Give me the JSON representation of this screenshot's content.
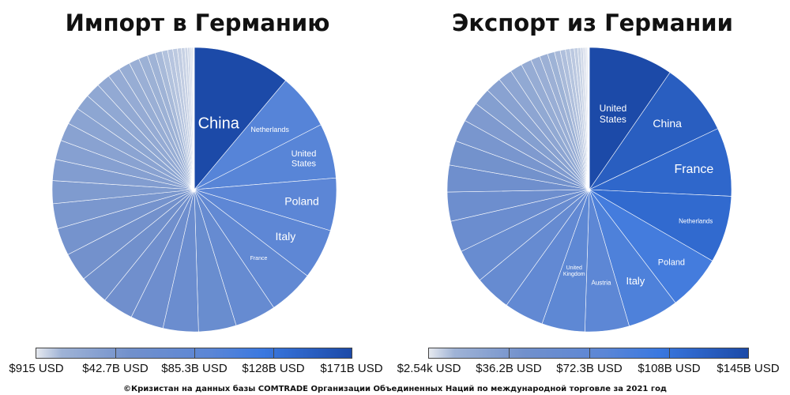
{
  "charts": [
    {
      "title": "Импорт в Германию",
      "labels": [
        "China",
        "Netherlands",
        "United States",
        "Poland",
        "Italy",
        "France"
      ],
      "legend_ticks": [
        "$915 USD",
        "$42.7B USD",
        "$85.3B USD",
        "$128B USD",
        "$171B USD"
      ]
    },
    {
      "title": "Экспорт из Германии",
      "labels": [
        "United States",
        "China",
        "France",
        "Netherlands",
        "Poland",
        "Italy",
        "Austria",
        "United Kingdom"
      ],
      "legend_ticks": [
        "$2.54k USD",
        "$36.2B USD",
        "$72.3B USD",
        "$108B USD",
        "$145B USD"
      ]
    }
  ],
  "source": "©Кризистан на данных базы COMTRADE Организации Объединенных Наций по международной торговле за 2021 год",
  "chart_data": [
    {
      "type": "pie",
      "title": "Импорт в Германию",
      "unit": "USD",
      "color_scale": {
        "min": "$915 USD",
        "max": "$171B USD",
        "colors": [
          "#e6e9ef",
          "#1c4aa8"
        ]
      },
      "slices": [
        {
          "label": "China",
          "value": 171
        },
        {
          "label": "Netherlands",
          "value": 98
        },
        {
          "label": "United States",
          "value": 96
        },
        {
          "label": "Poland",
          "value": 92
        },
        {
          "label": "Italy",
          "value": 88
        },
        {
          "label": "France",
          "value": 80
        },
        {
          "label": "",
          "value": 72
        },
        {
          "label": "",
          "value": 66
        },
        {
          "label": "",
          "value": 62
        },
        {
          "label": "",
          "value": 58
        },
        {
          "label": "",
          "value": 54
        },
        {
          "label": "",
          "value": 52
        },
        {
          "label": "",
          "value": 50
        },
        {
          "label": "",
          "value": 48
        },
        {
          "label": "",
          "value": 44
        },
        {
          "label": "",
          "value": 40
        },
        {
          "label": "",
          "value": 37
        },
        {
          "label": "",
          "value": 34
        },
        {
          "label": "",
          "value": 32
        },
        {
          "label": "",
          "value": 30
        },
        {
          "label": "",
          "value": 28
        },
        {
          "label": "",
          "value": 26
        },
        {
          "label": "",
          "value": 24
        },
        {
          "label": "",
          "value": 22
        },
        {
          "label": "",
          "value": 20
        },
        {
          "label": "",
          "value": 18
        },
        {
          "label": "",
          "value": 16
        },
        {
          "label": "",
          "value": 14
        },
        {
          "label": "",
          "value": 12
        },
        {
          "label": "",
          "value": 10
        },
        {
          "label": "",
          "value": 9
        },
        {
          "label": "",
          "value": 8
        },
        {
          "label": "",
          "value": 7
        },
        {
          "label": "",
          "value": 6
        },
        {
          "label": "",
          "value": 5
        },
        {
          "label": "",
          "value": 4
        },
        {
          "label": "",
          "value": 3
        },
        {
          "label": "",
          "value": 2
        },
        {
          "label": "",
          "value": 1.5
        },
        {
          "label": "",
          "value": 1
        }
      ]
    },
    {
      "type": "pie",
      "title": "Экспорт из Германии",
      "unit": "USD",
      "color_scale": {
        "min": "$2.54k USD",
        "max": "$145B USD",
        "colors": [
          "#e6e9ef",
          "#1c4aa8"
        ]
      },
      "slices": [
        {
          "label": "United States",
          "value": 145
        },
        {
          "label": "China",
          "value": 126
        },
        {
          "label": "France",
          "value": 118
        },
        {
          "label": "Netherlands",
          "value": 115
        },
        {
          "label": "Poland",
          "value": 95
        },
        {
          "label": "Italy",
          "value": 88
        },
        {
          "label": "Austria",
          "value": 76
        },
        {
          "label": "United Kingdom",
          "value": 74
        },
        {
          "label": "",
          "value": 68
        },
        {
          "label": "",
          "value": 62
        },
        {
          "label": "",
          "value": 58
        },
        {
          "label": "",
          "value": 54
        },
        {
          "label": "",
          "value": 50
        },
        {
          "label": "",
          "value": 46
        },
        {
          "label": "",
          "value": 42
        },
        {
          "label": "",
          "value": 38
        },
        {
          "label": "",
          "value": 34
        },
        {
          "label": "",
          "value": 30
        },
        {
          "label": "",
          "value": 27
        },
        {
          "label": "",
          "value": 24
        },
        {
          "label": "",
          "value": 21
        },
        {
          "label": "",
          "value": 18
        },
        {
          "label": "",
          "value": 16
        },
        {
          "label": "",
          "value": 14
        },
        {
          "label": "",
          "value": 12
        },
        {
          "label": "",
          "value": 10
        },
        {
          "label": "",
          "value": 9
        },
        {
          "label": "",
          "value": 8
        },
        {
          "label": "",
          "value": 7
        },
        {
          "label": "",
          "value": 6
        },
        {
          "label": "",
          "value": 5
        },
        {
          "label": "",
          "value": 4
        },
        {
          "label": "",
          "value": 3
        },
        {
          "label": "",
          "value": 2.5
        },
        {
          "label": "",
          "value": 2
        },
        {
          "label": "",
          "value": 1.5
        },
        {
          "label": "",
          "value": 1
        },
        {
          "label": "",
          "value": 0.8
        }
      ]
    }
  ]
}
